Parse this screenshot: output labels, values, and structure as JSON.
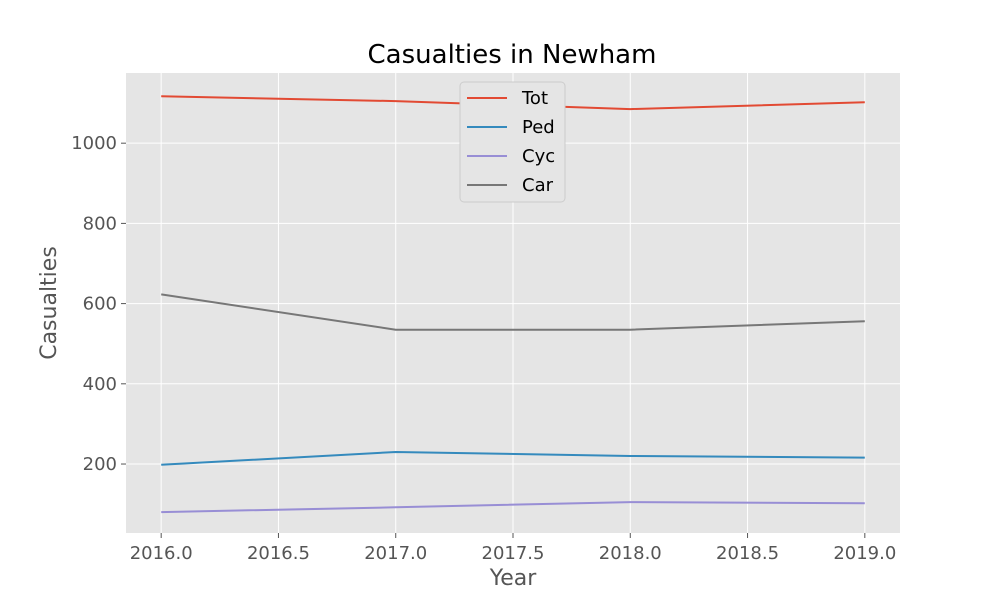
{
  "chart_data": {
    "type": "line",
    "title": "Casualties in Newham",
    "xlabel": "Year",
    "ylabel": "Casualties",
    "x": [
      2016,
      2017,
      2018,
      2019
    ],
    "xlim": [
      2015.85,
      2019.15
    ],
    "ylim": [
      28,
      1175
    ],
    "x_ticks": [
      "2016.0",
      "2016.5",
      "2017.0",
      "2017.5",
      "2018.0",
      "2018.5",
      "2019.0"
    ],
    "y_ticks": [
      "200",
      "400",
      "600",
      "800",
      "1000"
    ],
    "grid": true,
    "legend_position": "top-center",
    "series": [
      {
        "name": "Tot",
        "color": "#E24A33",
        "values": [
          1117,
          1105,
          1085,
          1102
        ]
      },
      {
        "name": "Ped",
        "color": "#348ABD",
        "values": [
          198,
          230,
          220,
          216
        ]
      },
      {
        "name": "Cyc",
        "color": "#988ED5",
        "values": [
          80,
          92,
          105,
          102
        ]
      },
      {
        "name": "Car",
        "color": "#777777",
        "values": [
          623,
          535,
          535,
          556
        ]
      }
    ],
    "colors": {
      "plot_background": "#E5E5E5",
      "grid": "#FFFFFF"
    }
  }
}
